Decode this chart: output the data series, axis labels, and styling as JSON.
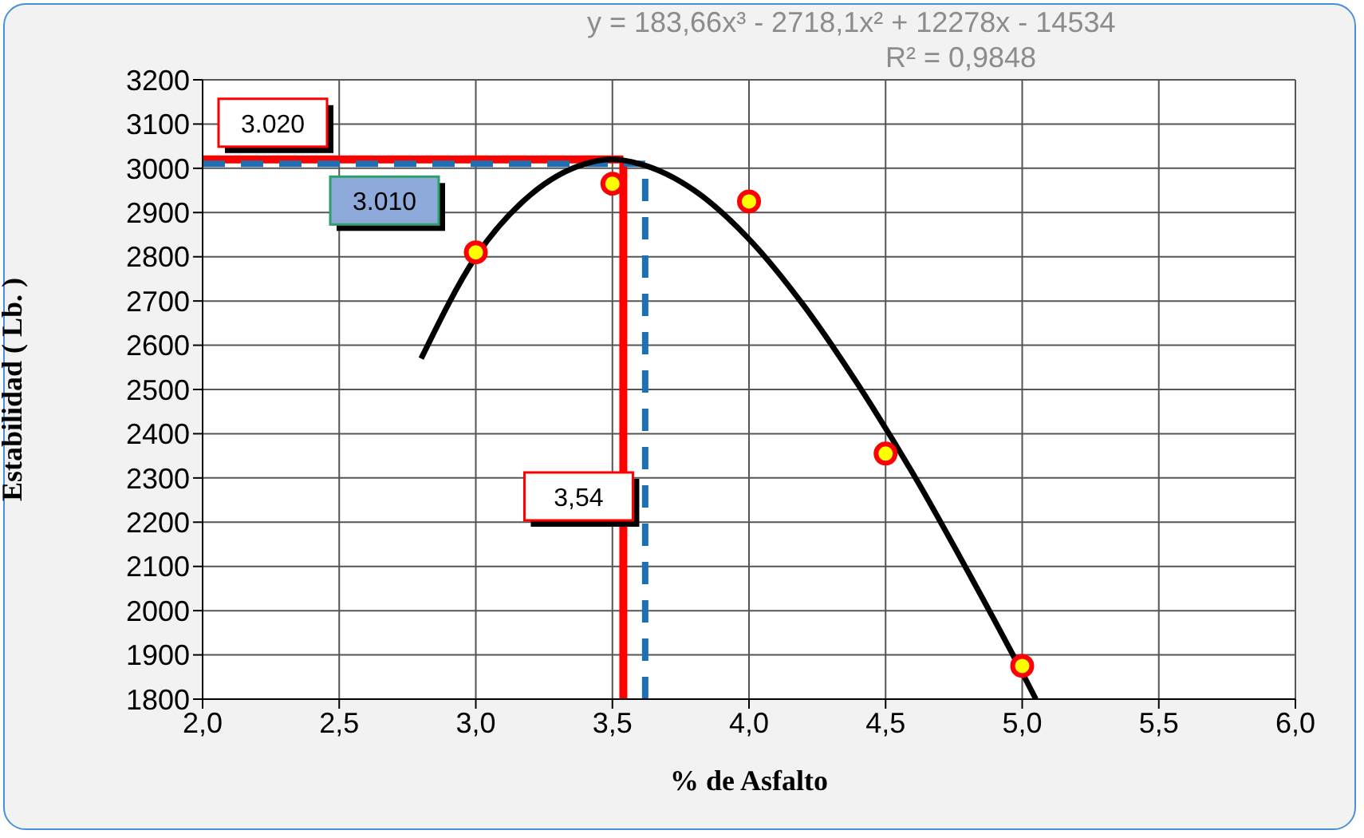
{
  "chart_data": {
    "type": "scatter",
    "xlabel": "% de Asfalto",
    "ylabel": "Estabilidad ( Lb. )",
    "series": [
      {
        "color": "#ffff00",
        "x": [
          3.0,
          3.5,
          4.0,
          4.5,
          5.0
        ],
        "values": [
          2810,
          2965,
          2925,
          2355,
          1875
        ]
      },
      {
        "type": "line",
        "marker": "none",
        "color": "#000000",
        "x": [
          2.8,
          3.0,
          3.2,
          3.4,
          3.5,
          3.6,
          3.8,
          4.0,
          4.2,
          4.4,
          4.6,
          4.8,
          5.0,
          5.05
        ],
        "values": [
          2570,
          2800,
          2940,
          3010,
          3020,
          3010,
          2950,
          2840,
          2690,
          2510,
          2310,
          2090,
          1860,
          1800
        ]
      }
    ],
    "xlim": [
      2.0,
      6.0
    ],
    "xticks": [
      {
        "value": 2.0,
        "label": "2,0"
      },
      {
        "value": 2.5,
        "label": "2,5"
      },
      {
        "value": 3.0,
        "label": "3,0"
      },
      {
        "value": 3.5,
        "label": "3,5"
      },
      {
        "value": 4.0,
        "label": "4,0"
      },
      {
        "value": 4.5,
        "label": "4,5"
      },
      {
        "value": 5.0,
        "label": "5,0"
      },
      {
        "value": 5.5,
        "label": "5,5"
      },
      {
        "value": 6.0,
        "label": "6,0"
      }
    ],
    "ylim": [
      1800,
      3200
    ],
    "yticks": [
      1800,
      1900,
      2000,
      2100,
      2200,
      2300,
      2400,
      2500,
      2600,
      2700,
      2800,
      2900,
      3000,
      3100,
      3200
    ],
    "grid": true,
    "marker": "circle",
    "ref_lines": [
      {
        "axis": "x",
        "value": 3.54,
        "label": "3,54",
        "color": "#ff0000",
        "line_style": "solid"
      },
      {
        "axis": "y",
        "value": 3020,
        "label": "3.020",
        "color": "#ff0000",
        "line_style": "solid"
      },
      {
        "axis": "y",
        "value": 3010,
        "label": "3.010",
        "color": "#1f6fb4",
        "line_style": "dashed"
      },
      {
        "axis": "x",
        "value": 3.62,
        "label": null,
        "color": "#1f6fb4",
        "line_style": "dashed"
      }
    ],
    "annotations": [
      "y = 183,66x³ - 2718,1x² + 12278x - 14534",
      "R² = 0,9848"
    ]
  }
}
